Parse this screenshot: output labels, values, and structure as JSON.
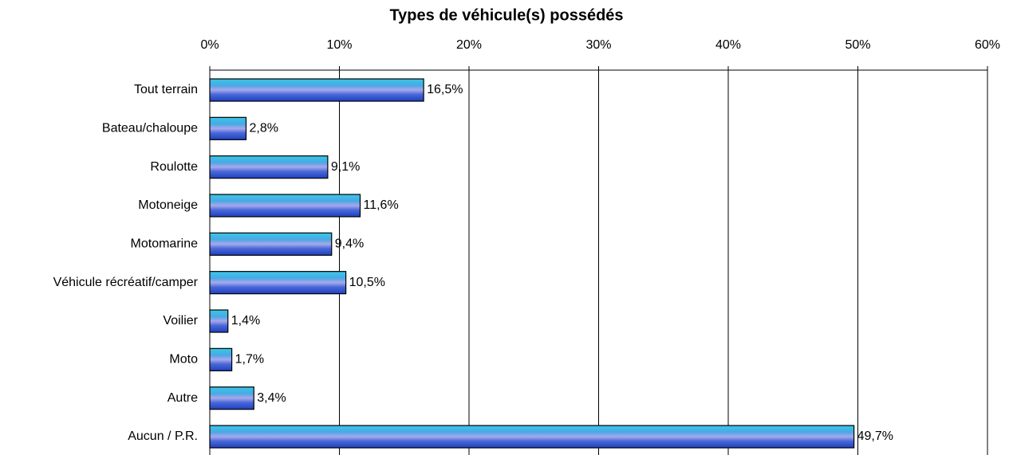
{
  "chart_data": {
    "type": "barh",
    "title": "Types de véhicule(s) possédés",
    "categories": [
      "Tout terrain",
      "Bateau/chaloupe",
      "Roulotte",
      "Motoneige",
      "Motomarine",
      "Véhicule récréatif/camper",
      "Voilier",
      "Moto",
      "Autre",
      "Aucun / P.R."
    ],
    "values": [
      16.5,
      2.8,
      9.1,
      11.6,
      9.4,
      10.5,
      1.4,
      1.7,
      3.4,
      49.7
    ],
    "value_labels": [
      "16,5%",
      "2,8%",
      "9,1%",
      "11,6%",
      "9,4%",
      "10,5%",
      "1,4%",
      "1,7%",
      "3,4%",
      "49,7%"
    ],
    "xlim": [
      0,
      60
    ],
    "xticks": [
      {
        "value": 0,
        "label": "0%"
      },
      {
        "value": 10,
        "label": "10%"
      },
      {
        "value": 20,
        "label": "20%"
      },
      {
        "value": 30,
        "label": "30%"
      },
      {
        "value": 40,
        "label": "40%"
      },
      {
        "value": 50,
        "label": "50%"
      },
      {
        "value": 60,
        "label": "60%"
      }
    ],
    "grid": true
  }
}
